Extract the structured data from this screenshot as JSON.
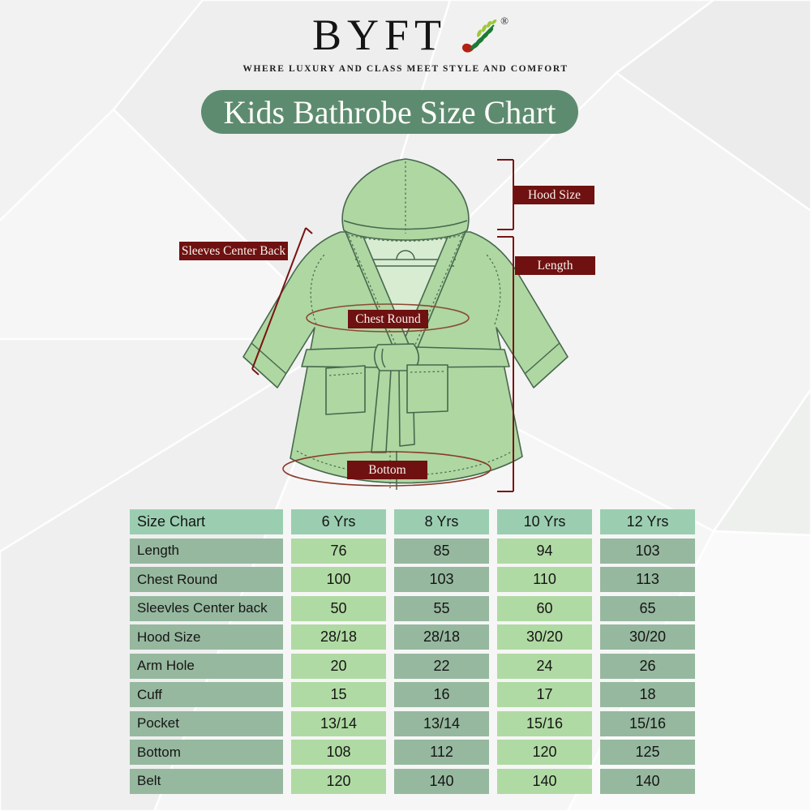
{
  "brand": {
    "name": "BYFT",
    "registered": "®",
    "tagline": "WHERE LUXURY AND CLASS MEET STYLE AND COMFORT"
  },
  "title": "Kids Bathrobe Size Chart",
  "diagram": {
    "sleeves_center_back": "Sleeves Center Back",
    "hood_size": "Hood Size",
    "length": "Length",
    "chest_round": "Chest Round",
    "bottom": "Bottom"
  },
  "size_table": {
    "columns": [
      "Size Chart",
      "6 Yrs",
      "8 Yrs",
      "10 Yrs",
      "12 Yrs"
    ],
    "rows": [
      {
        "label": "Length",
        "values": [
          "76",
          "85",
          "94",
          "103"
        ]
      },
      {
        "label": "Chest Round",
        "values": [
          "100",
          "103",
          "110",
          "113"
        ]
      },
      {
        "label": "Sleevles Center back",
        "values": [
          "50",
          "55",
          "60",
          "65"
        ]
      },
      {
        "label": "Hood Size",
        "values": [
          "28/18",
          "28/18",
          "30/20",
          "30/20"
        ]
      },
      {
        "label": "Arm Hole",
        "values": [
          "20",
          "22",
          "24",
          "26"
        ]
      },
      {
        "label": "Cuff",
        "values": [
          "15",
          "16",
          "17",
          "18"
        ]
      },
      {
        "label": "Pocket",
        "values": [
          "13/14",
          "13/14",
          "15/16",
          "15/16"
        ]
      },
      {
        "label": "Bottom",
        "values": [
          "108",
          "112",
          "120",
          "125"
        ]
      },
      {
        "label": "Belt",
        "values": [
          "120",
          "140",
          "140",
          "140"
        ]
      }
    ]
  },
  "colors": {
    "banner_green": "#5d8b70",
    "badge_maroon": "#6f1111",
    "measure_line": "#7b1212",
    "ellipse_brown": "#8a4a32",
    "robe_fill": "#aed7a2",
    "robe_inner": "#d8ecd2",
    "robe_outline": "#47684d",
    "cell_header": "#9bceb1",
    "cell_dark": "#96b89f",
    "cell_light": "#b0daa3",
    "leaf_dark": "#1d7a34",
    "leaf_light": "#9cc93a",
    "stem_red": "#b22214",
    "bg_base": "#f2f2f2",
    "text_dark": "#151515"
  }
}
